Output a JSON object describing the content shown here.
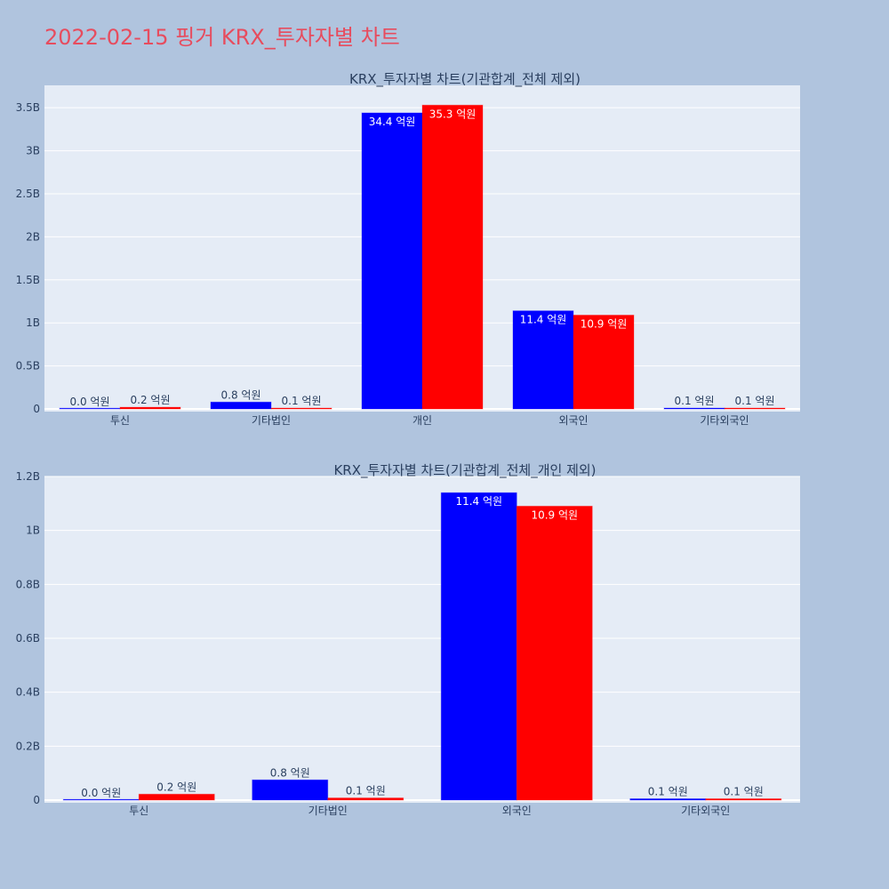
{
  "page": {
    "title": "2022-02-15 핑거 KRX_투자자별 차트"
  },
  "colors": {
    "buy": "#0000ff",
    "sell": "#ff0000",
    "plot_bg": "#e5ecf6",
    "paper": "#b0c4de",
    "text": "#2a3f5f",
    "title": "#e74c5e"
  },
  "chart_data": [
    {
      "type": "bar",
      "title": "KRX_투자자별 차트(기관합계_전체 제외)",
      "categories": [
        "투신",
        "기타법인",
        "개인",
        "외국인",
        "기타외국인"
      ],
      "series": [
        {
          "color": "#0000ff",
          "values": [
            0.0,
            80000000,
            3440000000,
            1140000000,
            10000000
          ],
          "labels": [
            "0.0 억원",
            "0.8 억원",
            "34.4 억원",
            "11.4 억원",
            "0.1 억원"
          ]
        },
        {
          "color": "#ff0000",
          "values": [
            20000000,
            10000000,
            3530000000,
            1090000000,
            10000000
          ],
          "labels": [
            "0.2 억원",
            "0.1 억원",
            "35.3 억원",
            "10.9 억원",
            "0.1 억원"
          ]
        }
      ],
      "yticks": [
        0,
        500000000,
        1000000000,
        1500000000,
        2000000000,
        2500000000,
        3000000000,
        3500000000
      ],
      "ytick_labels": [
        "0",
        "0.5B",
        "1B",
        "1.5B",
        "2B",
        "2.5B",
        "3B",
        "3.5B"
      ],
      "ylim": [
        0,
        3760000000
      ]
    },
    {
      "type": "bar",
      "title": "KRX_투자자별 차트(기관합계_전체_개인 제외)",
      "categories": [
        "투신",
        "기타법인",
        "외국인",
        "기타외국인"
      ],
      "series": [
        {
          "color": "#0000ff",
          "values": [
            0.0,
            75000000,
            1140000000,
            5000000
          ],
          "labels": [
            "0.0 억원",
            "0.8 억원",
            "11.4 억원",
            "0.1 억원"
          ]
        },
        {
          "color": "#ff0000",
          "values": [
            22000000,
            8000000,
            1090000000,
            5000000
          ],
          "labels": [
            "0.2 억원",
            "0.1 억원",
            "10.9 억원",
            "0.1 억원"
          ]
        }
      ],
      "yticks": [
        0,
        200000000,
        400000000,
        600000000,
        800000000,
        1000000000,
        1200000000
      ],
      "ytick_labels": [
        "0",
        "0.2B",
        "0.4B",
        "0.6B",
        "0.8B",
        "1B",
        "1.2B"
      ],
      "ylim": [
        0,
        1200000000
      ]
    }
  ]
}
